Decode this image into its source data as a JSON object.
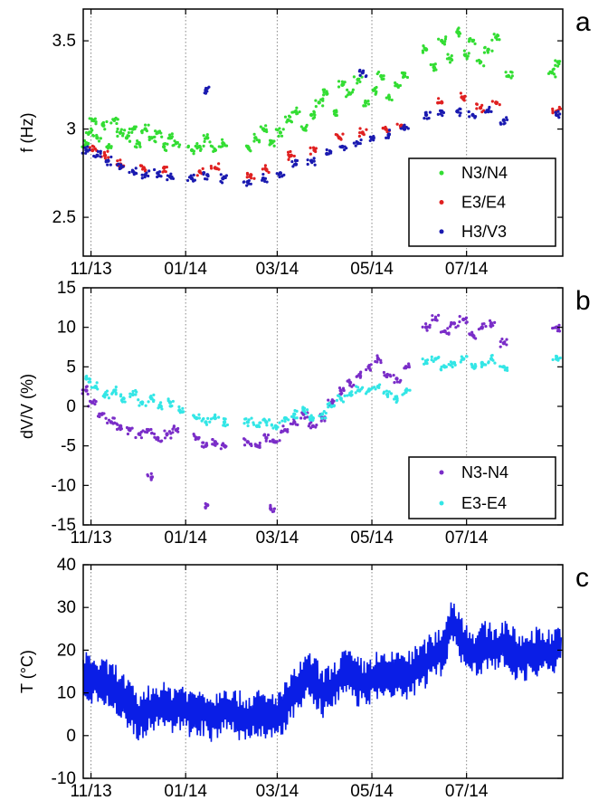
{
  "chart_data": [
    {
      "type": "scatter",
      "panel_label": "a",
      "ylabel": "f (Hz)",
      "ylim": [
        2.28,
        3.68
      ],
      "yticks": [
        2.5,
        3,
        3.5
      ],
      "ytick_labels": [
        "2.5",
        "3",
        "3.5"
      ],
      "xlim": [
        "2013-10-27",
        "2014-09-01"
      ],
      "xticks": [
        "2013-11-01",
        "2014-01-01",
        "2014-03-01",
        "2014-05-01",
        "2014-07-01"
      ],
      "xtick_labels": [
        "11/13",
        "01/14",
        "03/14",
        "05/14",
        "07/14"
      ],
      "grid": "vertical dotted at x ticks",
      "legend_placement": "bottom-right",
      "series": [
        {
          "name": "N3/N4",
          "color": "#33dd33",
          "points": [
            [
              "2013-10-29",
              2.92
            ],
            [
              "2013-10-31",
              2.98
            ],
            [
              "2013-11-02",
              3.05
            ],
            [
              "2013-11-05",
              2.95
            ],
            [
              "2013-11-09",
              3.02
            ],
            [
              "2013-11-12",
              2.9
            ],
            [
              "2013-11-16",
              3.05
            ],
            [
              "2013-11-20",
              2.98
            ],
            [
              "2013-11-24",
              2.95
            ],
            [
              "2013-11-28",
              3.0
            ],
            [
              "2013-12-02",
              2.92
            ],
            [
              "2013-12-06",
              3.0
            ],
            [
              "2013-12-10",
              2.95
            ],
            [
              "2013-12-14",
              2.98
            ],
            [
              "2013-12-18",
              2.9
            ],
            [
              "2013-12-22",
              2.95
            ],
            [
              "2013-12-26",
              2.92
            ],
            [
              "2014-01-05",
              2.88
            ],
            [
              "2014-01-10",
              2.9
            ],
            [
              "2014-01-15",
              2.95
            ],
            [
              "2014-01-20",
              2.88
            ],
            [
              "2014-01-25",
              2.92
            ],
            [
              "2014-02-10",
              2.9
            ],
            [
              "2014-02-15",
              2.95
            ],
            [
              "2014-02-20",
              3.0
            ],
            [
              "2014-02-25",
              2.92
            ],
            [
              "2014-03-03",
              2.98
            ],
            [
              "2014-03-08",
              3.05
            ],
            [
              "2014-03-13",
              3.1
            ],
            [
              "2014-03-18",
              3.0
            ],
            [
              "2014-03-23",
              3.08
            ],
            [
              "2014-03-28",
              3.15
            ],
            [
              "2014-04-02",
              3.2
            ],
            [
              "2014-04-07",
              3.1
            ],
            [
              "2014-04-12",
              3.25
            ],
            [
              "2014-04-17",
              3.2
            ],
            [
              "2014-04-22",
              3.28
            ],
            [
              "2014-04-27",
              3.15
            ],
            [
              "2014-05-02",
              3.22
            ],
            [
              "2014-05-07",
              3.3
            ],
            [
              "2014-05-12",
              3.18
            ],
            [
              "2014-05-17",
              3.25
            ],
            [
              "2014-05-22",
              3.3
            ],
            [
              "2014-06-05",
              3.45
            ],
            [
              "2014-06-10",
              3.35
            ],
            [
              "2014-06-15",
              3.5
            ],
            [
              "2014-06-20",
              3.4
            ],
            [
              "2014-06-25",
              3.55
            ],
            [
              "2014-06-30",
              3.42
            ],
            [
              "2014-07-05",
              3.5
            ],
            [
              "2014-07-10",
              3.38
            ],
            [
              "2014-07-15",
              3.45
            ],
            [
              "2014-07-20",
              3.52
            ],
            [
              "2014-07-28",
              3.3
            ],
            [
              "2014-08-25",
              3.32
            ],
            [
              "2014-08-29",
              3.38
            ]
          ]
        },
        {
          "name": "E3/E4",
          "color": "#e02020",
          "points": [
            [
              "2013-11-02",
              2.88
            ],
            [
              "2013-11-10",
              2.85
            ],
            [
              "2013-11-20",
              2.8
            ],
            [
              "2013-12-05",
              2.78
            ],
            [
              "2013-12-18",
              2.78
            ],
            [
              "2014-01-10",
              2.76
            ],
            [
              "2014-01-20",
              2.78
            ],
            [
              "2014-02-12",
              2.74
            ],
            [
              "2014-02-22",
              2.77
            ],
            [
              "2014-03-10",
              2.85
            ],
            [
              "2014-03-25",
              2.88
            ],
            [
              "2014-04-10",
              2.95
            ],
            [
              "2014-04-25",
              2.98
            ],
            [
              "2014-05-10",
              3.0
            ],
            [
              "2014-05-20",
              3.02
            ],
            [
              "2014-06-15",
              3.15
            ],
            [
              "2014-06-28",
              3.18
            ],
            [
              "2014-07-10",
              3.12
            ],
            [
              "2014-07-20",
              3.15
            ],
            [
              "2014-08-28",
              3.1
            ]
          ]
        },
        {
          "name": "H3/V3",
          "color": "#1a1ab0",
          "points": [
            [
              "2013-10-29",
              2.88
            ],
            [
              "2013-11-05",
              2.85
            ],
            [
              "2013-11-12",
              2.82
            ],
            [
              "2013-11-20",
              2.78
            ],
            [
              "2013-11-28",
              2.76
            ],
            [
              "2013-12-06",
              2.74
            ],
            [
              "2013-12-14",
              2.75
            ],
            [
              "2013-12-22",
              2.73
            ],
            [
              "2014-01-05",
              2.72
            ],
            [
              "2014-01-15",
              2.74
            ],
            [
              "2014-01-25",
              2.72
            ],
            [
              "2014-02-10",
              2.7
            ],
            [
              "2014-02-20",
              2.72
            ],
            [
              "2014-03-03",
              2.75
            ],
            [
              "2014-03-13",
              2.8
            ],
            [
              "2014-03-23",
              2.82
            ],
            [
              "2014-04-02",
              2.86
            ],
            [
              "2014-04-12",
              2.9
            ],
            [
              "2014-04-22",
              2.92
            ],
            [
              "2014-05-02",
              2.95
            ],
            [
              "2014-05-12",
              2.97
            ],
            [
              "2014-05-22",
              3.0
            ],
            [
              "2014-06-05",
              3.08
            ],
            [
              "2014-06-15",
              3.1
            ],
            [
              "2014-06-25",
              3.1
            ],
            [
              "2014-07-05",
              3.08
            ],
            [
              "2014-07-15",
              3.1
            ],
            [
              "2014-07-25",
              3.05
            ],
            [
              "2014-08-28",
              3.08
            ],
            [
              "2014-01-14",
              3.22
            ],
            [
              "2014-04-25",
              3.32
            ]
          ]
        }
      ]
    },
    {
      "type": "scatter",
      "panel_label": "b",
      "ylabel": "dV/V (%)",
      "ylim": [
        -15,
        15
      ],
      "yticks": [
        -15,
        -10,
        -5,
        0,
        5,
        10,
        15
      ],
      "ytick_labels": [
        "-15",
        "-10",
        "-5",
        "0",
        "5",
        "10",
        "15"
      ],
      "xlim": [
        "2013-10-27",
        "2014-09-01"
      ],
      "xticks": [
        "2013-11-01",
        "2014-01-01",
        "2014-03-01",
        "2014-05-01",
        "2014-07-01"
      ],
      "xtick_labels": [
        "11/13",
        "01/14",
        "03/14",
        "05/14",
        "07/14"
      ],
      "grid": "vertical dotted at x ticks",
      "legend_placement": "bottom-right",
      "series": [
        {
          "name": "N3-N4",
          "color": "#7a2dc8",
          "points": [
            [
              "2013-10-29",
              2.0
            ],
            [
              "2013-11-02",
              0.5
            ],
            [
              "2013-11-08",
              -1.0
            ],
            [
              "2013-11-14",
              -2.0
            ],
            [
              "2013-11-20",
              -2.5
            ],
            [
              "2013-11-26",
              -3.0
            ],
            [
              "2013-12-02",
              -3.5
            ],
            [
              "2013-12-08",
              -3.0
            ],
            [
              "2013-12-14",
              -4.0
            ],
            [
              "2013-12-20",
              -3.5
            ],
            [
              "2013-12-26",
              -3.0
            ],
            [
              "2014-01-08",
              -4.0
            ],
            [
              "2014-01-14",
              -5.0
            ],
            [
              "2014-01-20",
              -4.5
            ],
            [
              "2014-01-26",
              -5.0
            ],
            [
              "2014-02-10",
              -4.5
            ],
            [
              "2014-02-16",
              -5.0
            ],
            [
              "2014-02-22",
              -4.0
            ],
            [
              "2014-02-28",
              -4.5
            ],
            [
              "2014-03-06",
              -3.0
            ],
            [
              "2014-03-12",
              -2.0
            ],
            [
              "2014-03-18",
              -1.0
            ],
            [
              "2014-03-24",
              -2.5
            ],
            [
              "2014-03-30",
              -1.5
            ],
            [
              "2014-04-05",
              0.5
            ],
            [
              "2014-04-11",
              2.0
            ],
            [
              "2014-04-17",
              3.0
            ],
            [
              "2014-04-23",
              4.0
            ],
            [
              "2014-04-29",
              5.0
            ],
            [
              "2014-05-05",
              6.0
            ],
            [
              "2014-05-11",
              4.0
            ],
            [
              "2014-05-17",
              3.5
            ],
            [
              "2014-05-23",
              5.0
            ],
            [
              "2014-06-05",
              10.0
            ],
            [
              "2014-06-11",
              11.0
            ],
            [
              "2014-06-17",
              9.5
            ],
            [
              "2014-06-23",
              10.5
            ],
            [
              "2014-06-29",
              11.0
            ],
            [
              "2014-07-05",
              9.0
            ],
            [
              "2014-07-11",
              10.0
            ],
            [
              "2014-07-17",
              10.5
            ],
            [
              "2014-07-25",
              8.0
            ],
            [
              "2014-08-28",
              10.0
            ],
            [
              "2013-12-10",
              -9.0
            ],
            [
              "2014-01-15",
              -12.5
            ],
            [
              "2014-02-25",
              -13.0
            ]
          ]
        },
        {
          "name": "E3-E4",
          "color": "#33e6e6",
          "points": [
            [
              "2013-10-29",
              3.5
            ],
            [
              "2013-11-04",
              2.5
            ],
            [
              "2013-11-10",
              1.5
            ],
            [
              "2013-11-16",
              2.0
            ],
            [
              "2013-11-22",
              1.0
            ],
            [
              "2013-11-28",
              1.5
            ],
            [
              "2013-12-04",
              0.5
            ],
            [
              "2013-12-10",
              1.0
            ],
            [
              "2013-12-16",
              0.0
            ],
            [
              "2013-12-22",
              0.5
            ],
            [
              "2013-12-28",
              -0.5
            ],
            [
              "2014-01-08",
              -1.5
            ],
            [
              "2014-01-14",
              -2.0
            ],
            [
              "2014-01-20",
              -1.5
            ],
            [
              "2014-01-26",
              -2.0
            ],
            [
              "2014-02-10",
              -2.0
            ],
            [
              "2014-02-16",
              -2.5
            ],
            [
              "2014-02-22",
              -2.0
            ],
            [
              "2014-02-28",
              -2.5
            ],
            [
              "2014-03-06",
              -1.5
            ],
            [
              "2014-03-12",
              -1.0
            ],
            [
              "2014-03-18",
              -0.5
            ],
            [
              "2014-03-24",
              -1.5
            ],
            [
              "2014-03-30",
              -1.0
            ],
            [
              "2014-04-05",
              0.0
            ],
            [
              "2014-04-11",
              1.0
            ],
            [
              "2014-04-17",
              1.5
            ],
            [
              "2014-04-23",
              2.0
            ],
            [
              "2014-04-29",
              2.0
            ],
            [
              "2014-05-05",
              2.5
            ],
            [
              "2014-05-11",
              1.5
            ],
            [
              "2014-05-17",
              1.0
            ],
            [
              "2014-05-23",
              2.0
            ],
            [
              "2014-06-05",
              5.5
            ],
            [
              "2014-06-11",
              6.0
            ],
            [
              "2014-06-17",
              5.0
            ],
            [
              "2014-06-23",
              5.5
            ],
            [
              "2014-06-29",
              6.0
            ],
            [
              "2014-07-05",
              5.0
            ],
            [
              "2014-07-11",
              5.5
            ],
            [
              "2014-07-17",
              6.0
            ],
            [
              "2014-07-25",
              5.0
            ],
            [
              "2014-08-28",
              6.0
            ]
          ]
        }
      ]
    },
    {
      "type": "line",
      "panel_label": "c",
      "ylabel": "T (°C)",
      "ylim": [
        -10,
        40
      ],
      "yticks": [
        -10,
        0,
        10,
        20,
        30,
        40
      ],
      "ytick_labels": [
        "-10",
        "0",
        "10",
        "20",
        "30",
        "40"
      ],
      "xlim": [
        "2013-10-27",
        "2014-09-01"
      ],
      "xticks": [
        "2013-11-01",
        "2014-01-01",
        "2014-03-01",
        "2014-05-01",
        "2014-07-01"
      ],
      "xtick_labels": [
        "11/13",
        "01/14",
        "03/14",
        "05/14",
        "07/14"
      ],
      "grid": "vertical dotted at x ticks",
      "series": [
        {
          "color": "#0a1ee6",
          "x": [
            "2013-10-27",
            "2013-11-03",
            "2013-11-10",
            "2013-11-17",
            "2013-11-24",
            "2013-12-01",
            "2013-12-08",
            "2013-12-15",
            "2013-12-22",
            "2013-12-29",
            "2014-01-05",
            "2014-01-12",
            "2014-01-19",
            "2014-01-26",
            "2014-02-02",
            "2014-02-09",
            "2014-02-16",
            "2014-02-23",
            "2014-03-02",
            "2014-03-09",
            "2014-03-16",
            "2014-03-23",
            "2014-03-30",
            "2014-04-06",
            "2014-04-13",
            "2014-04-20",
            "2014-04-27",
            "2014-05-04",
            "2014-05-11",
            "2014-05-18",
            "2014-05-25",
            "2014-06-01",
            "2014-06-08",
            "2014-06-15",
            "2014-06-22",
            "2014-06-29",
            "2014-07-06",
            "2014-07-13",
            "2014-07-20",
            "2014-07-27",
            "2014-08-03",
            "2014-08-10",
            "2014-08-17",
            "2014-08-24",
            "2014-08-31"
          ],
          "values": [
            15,
            13,
            12,
            11,
            8,
            4,
            6,
            7,
            6,
            7,
            5,
            6,
            4,
            7,
            5,
            4,
            5,
            4,
            5,
            8,
            12,
            14,
            10,
            11,
            15,
            13,
            12,
            14,
            13,
            15,
            14,
            16,
            18,
            20,
            27,
            22,
            19,
            21,
            20,
            22,
            18,
            19,
            20,
            19,
            21
          ]
        }
      ]
    }
  ]
}
